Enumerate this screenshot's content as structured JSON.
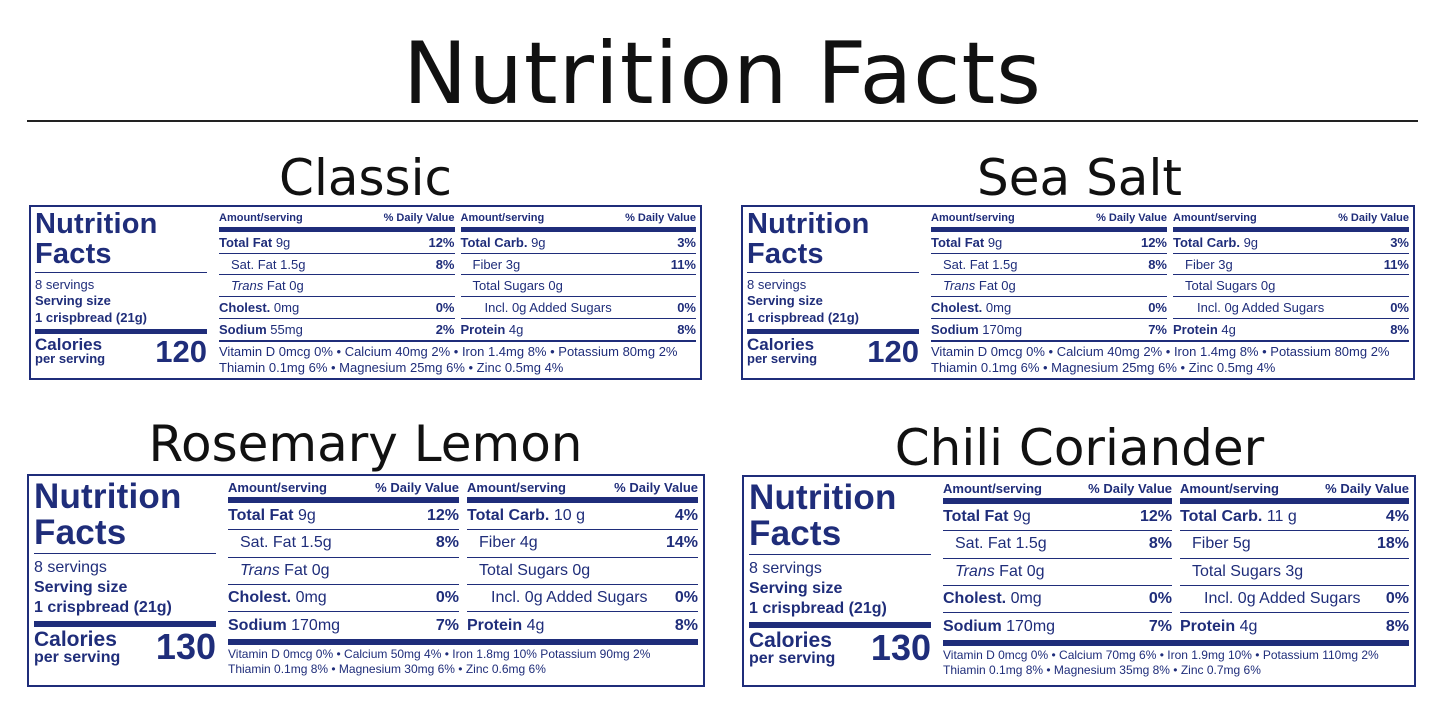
{
  "title": "Nutrition Facts",
  "colors": {
    "label_blue": "#1f2d7a",
    "text_dark": "#111111"
  },
  "panels": [
    {
      "name": "Classic",
      "label_title_1": "Nutrition",
      "label_title_2": "Facts",
      "servings": "8 servings",
      "serving_size_label": "Serving size",
      "serving_size_value": "1 crispbread (21g)",
      "calories_label": "Calories",
      "calories_sub": "per serving",
      "calories_value": "120",
      "col_header_amount": "Amount/serving",
      "col_header_dv": "% Daily Value",
      "left_rows": [
        {
          "name": "Total Fat",
          "amount": "9g",
          "pct": "12%"
        },
        {
          "name": "Sat. Fat",
          "amount": "1.5g",
          "pct": "8%"
        },
        {
          "name": "Trans",
          "amount": "Fat 0g",
          "pct": ""
        },
        {
          "name": "Cholest.",
          "amount": "0mg",
          "pct": "0%"
        },
        {
          "name": "Sodium",
          "amount": "55mg",
          "pct": "2%"
        }
      ],
      "right_rows": [
        {
          "name": "Total Carb.",
          "amount": "9g",
          "pct": "3%"
        },
        {
          "name": "Fiber",
          "amount": "3g",
          "pct": "11%"
        },
        {
          "name": "Total Sugars",
          "amount": "0g",
          "pct": ""
        },
        {
          "name": "Incl. 0g Added Sugars",
          "amount": "",
          "pct": "0%"
        },
        {
          "name": "Protein",
          "amount": "4g",
          "pct": "8%"
        }
      ],
      "vitamins_line1": "Vitamin D 0mcg 0% • Calcium 40mg 2% • Iron 1.4mg 8% • Potassium 80mg 2%",
      "vitamins_line2": "Thiamin 0.1mg 6% • Magnesium 25mg 6% • Zinc 0.5mg 4%"
    },
    {
      "name": "Sea Salt",
      "label_title_1": "Nutrition",
      "label_title_2": "Facts",
      "servings": "8 servings",
      "serving_size_label": "Serving size",
      "serving_size_value": "1 crispbread (21g)",
      "calories_label": "Calories",
      "calories_sub": "per serving",
      "calories_value": "120",
      "col_header_amount": "Amount/serving",
      "col_header_dv": "% Daily Value",
      "left_rows": [
        {
          "name": "Total Fat",
          "amount": "9g",
          "pct": "12%"
        },
        {
          "name": "Sat. Fat",
          "amount": "1.5g",
          "pct": "8%"
        },
        {
          "name": "Trans",
          "amount": "Fat 0g",
          "pct": ""
        },
        {
          "name": "Cholest.",
          "amount": "0mg",
          "pct": "0%"
        },
        {
          "name": "Sodium",
          "amount": "170mg",
          "pct": "7%"
        }
      ],
      "right_rows": [
        {
          "name": "Total Carb.",
          "amount": "9g",
          "pct": "3%"
        },
        {
          "name": "Fiber",
          "amount": "3g",
          "pct": "11%"
        },
        {
          "name": "Total Sugars",
          "amount": "0g",
          "pct": ""
        },
        {
          "name": "Incl. 0g Added Sugars",
          "amount": "",
          "pct": "0%"
        },
        {
          "name": "Protein",
          "amount": "4g",
          "pct": "8%"
        }
      ],
      "vitamins_line1": "Vitamin D 0mcg 0% • Calcium 40mg 2% • Iron 1.4mg 8% • Potassium 80mg 2%",
      "vitamins_line2": "Thiamin 0.1mg 6% • Magnesium 25mg 6% • Zinc 0.5mg 4%"
    },
    {
      "name": "Rosemary Lemon",
      "label_title_1": "Nutrition",
      "label_title_2": "Facts",
      "servings": "8 servings",
      "serving_size_label": "Serving size",
      "serving_size_value": "1 crispbread (21g)",
      "calories_label": "Calories",
      "calories_sub": "per serving",
      "calories_value": "130",
      "col_header_amount": "Amount/serving",
      "col_header_dv": "% Daily Value",
      "left_rows": [
        {
          "name": "Total Fat",
          "amount": "9g",
          "pct": "12%"
        },
        {
          "name": "Sat. Fat",
          "amount": "1.5g",
          "pct": "8%"
        },
        {
          "name": "Trans",
          "amount": "Fat 0g",
          "pct": ""
        },
        {
          "name": "Cholest.",
          "amount": "0mg",
          "pct": "0%"
        },
        {
          "name": "Sodium",
          "amount": "170mg",
          "pct": "7%"
        }
      ],
      "right_rows": [
        {
          "name": "Total Carb.",
          "amount": "10 g",
          "pct": "4%"
        },
        {
          "name": "Fiber",
          "amount": "4g",
          "pct": "14%"
        },
        {
          "name": "Total Sugars",
          "amount": "0g",
          "pct": ""
        },
        {
          "name": "Incl. 0g Added Sugars",
          "amount": "",
          "pct": "0%"
        },
        {
          "name": "Protein",
          "amount": "4g",
          "pct": "8%"
        }
      ],
      "vitamins_line1": "Vitamin D 0mcg 0% • Calcium 50mg 4% • Iron 1.8mg 10% Potassium 90mg 2%",
      "vitamins_line2": "Thiamin 0.1mg 8% • Magnesium 30mg 6% • Zinc 0.6mg 6%"
    },
    {
      "name": "Chili Coriander",
      "label_title_1": "Nutrition",
      "label_title_2": "Facts",
      "servings": "8 servings",
      "serving_size_label": "Serving size",
      "serving_size_value": "1 crispbread (21g)",
      "calories_label": "Calories",
      "calories_sub": "per serving",
      "calories_value": "130",
      "col_header_amount": "Amount/serving",
      "col_header_dv": "% Daily Value",
      "left_rows": [
        {
          "name": "Total Fat",
          "amount": "9g",
          "pct": "12%"
        },
        {
          "name": "Sat. Fat",
          "amount": "1.5g",
          "pct": "8%"
        },
        {
          "name": "Trans",
          "amount": "Fat 0g",
          "pct": ""
        },
        {
          "name": "Cholest.",
          "amount": "0mg",
          "pct": "0%"
        },
        {
          "name": "Sodium",
          "amount": "170mg",
          "pct": "7%"
        }
      ],
      "right_rows": [
        {
          "name": "Total Carb.",
          "amount": "11 g",
          "pct": "4%"
        },
        {
          "name": "Fiber",
          "amount": "5g",
          "pct": "18%"
        },
        {
          "name": "Total Sugars",
          "amount": "3g",
          "pct": ""
        },
        {
          "name": "Incl. 0g Added Sugars",
          "amount": "",
          "pct": "0%"
        },
        {
          "name": "Protein",
          "amount": "4g",
          "pct": "8%"
        }
      ],
      "vitamins_line1": "Vitamin D 0mcg 0% • Calcium 70mg 6% • Iron 1.9mg 10% • Potassium 110mg 2%",
      "vitamins_line2": "Thiamin 0.1mg 8% • Magnesium 35mg 8% • Zinc 0.7mg 6%"
    }
  ]
}
